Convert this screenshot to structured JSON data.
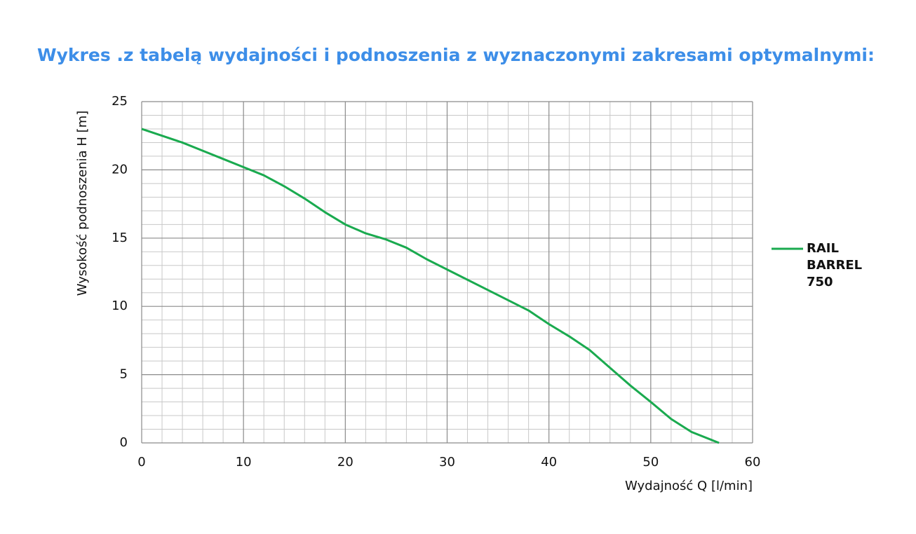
{
  "chart_data": {
    "type": "line",
    "title": "Wykres .z tabelą wydajności i podnoszenia z wyznaczonymi zakresami optymalnymi:",
    "xlabel": "Wydajność Q [l/min]",
    "ylabel": "Wysokość podnoszenia H [m]",
    "x": [
      0,
      2,
      4,
      6,
      8,
      10,
      12,
      14,
      16,
      18,
      20,
      22,
      24,
      26,
      28,
      30,
      34,
      38,
      40,
      42,
      44,
      46,
      48,
      50,
      52,
      54,
      56.7
    ],
    "series": [
      {
        "name": "RAIL BARREL 750",
        "color": "#1aaa4f",
        "values": [
          23,
          22.5,
          22,
          21.4,
          20.8,
          20.2,
          19.6,
          18.8,
          17.9,
          16.9,
          16,
          15.35,
          14.9,
          14.3,
          13.45,
          12.7,
          11.2,
          9.7,
          8.7,
          7.8,
          6.8,
          5.5,
          4.2,
          3.0,
          1.75,
          0.8,
          0
        ]
      }
    ],
    "xlim": [
      0,
      60
    ],
    "xticks": [
      0,
      10,
      20,
      30,
      40,
      50,
      60
    ],
    "ylim": [
      0,
      25
    ],
    "yticks": [
      0,
      5,
      10,
      15,
      20,
      25
    ],
    "grid": true,
    "legend": "right"
  }
}
